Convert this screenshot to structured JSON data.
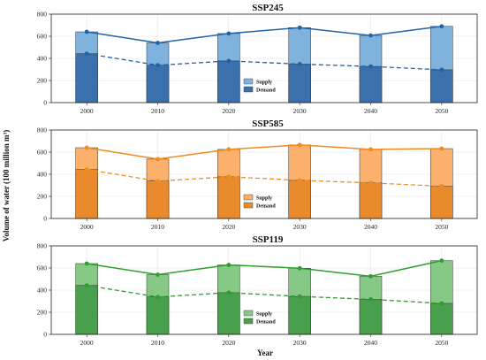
{
  "chart_data": {
    "type": "bar",
    "xlabel": "Year",
    "ylabel": "Volume of water (100 million m³)",
    "categories": [
      "2000",
      "2010",
      "2020",
      "2030",
      "2040",
      "2050"
    ],
    "ylim": [
      0,
      800
    ],
    "yticks": [
      "0",
      "200",
      "400",
      "600",
      "800"
    ],
    "grid": true,
    "legend_placement": "lower-center",
    "panels": [
      {
        "title": "SSP245",
        "colors": {
          "supply": "#7fb3de",
          "demand": "#3a70ab",
          "line": "#1f63a8"
        },
        "series": [
          {
            "name": "Supply",
            "values": [
              640,
              540,
              625,
              678,
              607,
              690
            ]
          },
          {
            "name": "Demand",
            "values": [
              443,
              338,
              377,
              348,
              327,
              297
            ]
          }
        ]
      },
      {
        "title": "SSP585",
        "colors": {
          "supply": "#fbb06b",
          "demand": "#e98a2d",
          "line": "#f28a1e"
        },
        "series": [
          {
            "name": "Supply",
            "values": [
              640,
              537,
              625,
              665,
              625,
              632
            ]
          },
          {
            "name": "Demand",
            "values": [
              443,
              338,
              377,
              345,
              322,
              292
            ]
          }
        ]
      },
      {
        "title": "SSP119",
        "colors": {
          "supply": "#86c986",
          "demand": "#48a04d",
          "line": "#2ca02c"
        },
        "series": [
          {
            "name": "Supply",
            "values": [
              640,
              540,
              628,
              598,
              525,
              667
            ]
          },
          {
            "name": "Demand",
            "values": [
              443,
              338,
              377,
              343,
              317,
              280
            ]
          }
        ]
      }
    ]
  }
}
